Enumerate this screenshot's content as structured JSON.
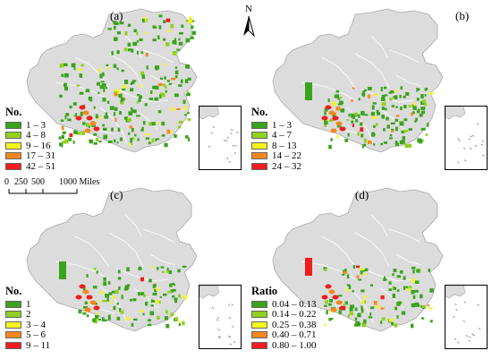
{
  "figure": {
    "north_label": "N",
    "scale_bar": {
      "labels": [
        "0",
        "250",
        "500",
        "1000 Miles"
      ]
    },
    "colors": {
      "base": "#dcdcdc",
      "border": "#a8a8a8",
      "class1": "#3aa31c",
      "class2": "#8fd11e",
      "class3": "#f6f51a",
      "class4": "#f7871c",
      "class5": "#ef1d1d"
    },
    "panels": [
      {
        "label": "(a)",
        "legend_title": "No.",
        "legend_items": [
          "1 – 3",
          "4 – 8",
          "9 – 16",
          "17 – 31",
          "42 – 51"
        ]
      },
      {
        "label": "(b)",
        "legend_title": "No.",
        "legend_items": [
          "1 – 3",
          "4 – 7",
          "8 – 13",
          "14 – 22",
          "24 – 32"
        ]
      },
      {
        "label": "(c)",
        "legend_title": "No.",
        "legend_items": [
          "1",
          "2",
          "3 – 4",
          "5 – 6",
          "9 – 11"
        ]
      },
      {
        "label": "(d)",
        "legend_title": "Ratio",
        "legend_items": [
          "0.04 – 0.13",
          "0.14 – 0.22",
          "0.25 – 0.38",
          "0.40 – 0.71",
          "0.80 – 1.00"
        ]
      }
    ]
  }
}
